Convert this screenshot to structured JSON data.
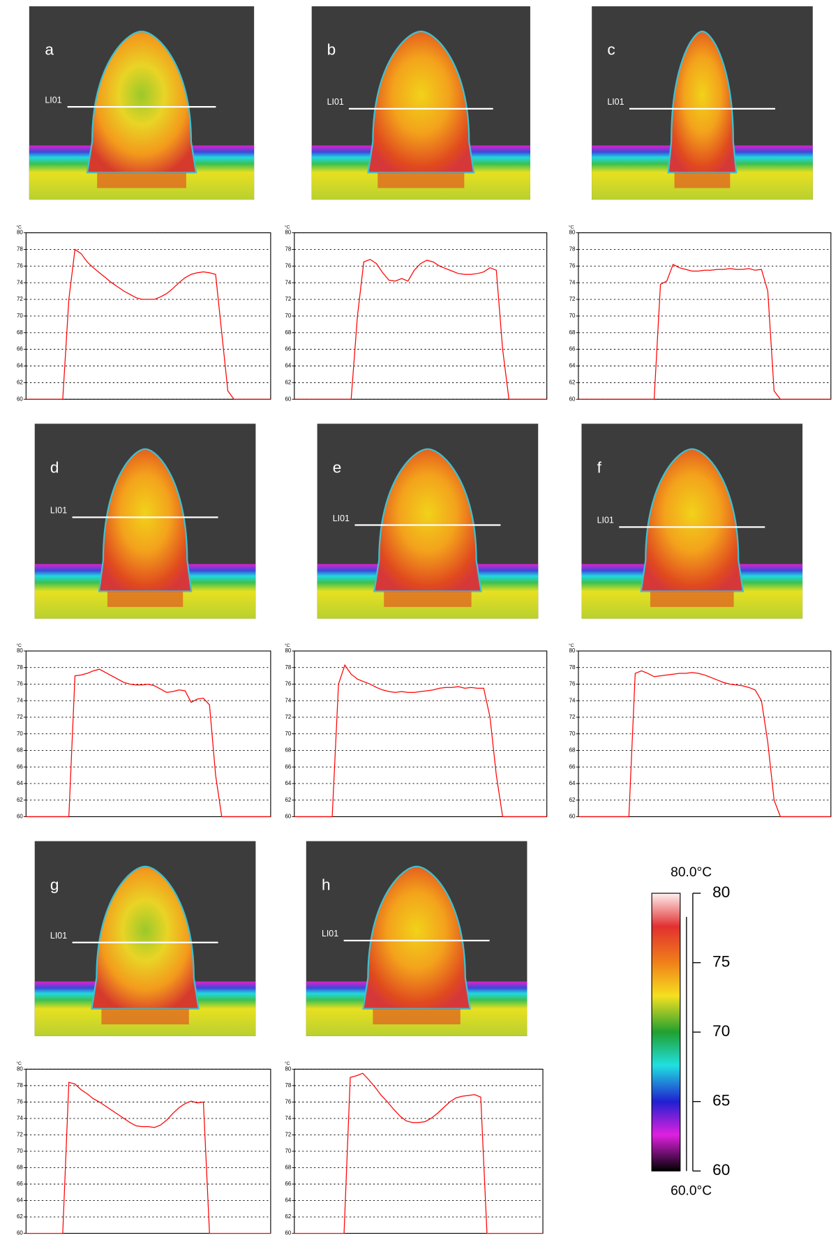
{
  "chart_data": [
    {
      "type": "line",
      "panel_label": "a",
      "line_label": "LI01",
      "y_unit": "°C",
      "color": "#ff0000",
      "ylim": [
        60,
        80
      ],
      "yticks": [
        60,
        62,
        64,
        66,
        68,
        70,
        72,
        74,
        76,
        78,
        80
      ],
      "grid": true,
      "values": [
        60,
        60,
        60,
        60,
        60,
        60,
        60,
        72,
        78,
        77.5,
        76.5,
        75.8,
        75.2,
        74.6,
        74,
        73.5,
        73,
        72.6,
        72.2,
        72,
        72,
        72,
        72.3,
        72.7,
        73.3,
        74,
        74.6,
        75,
        75.2,
        75.3,
        75.2,
        75,
        68,
        61,
        60,
        60,
        60,
        60,
        60,
        60,
        60
      ]
    },
    {
      "type": "line",
      "panel_label": "b",
      "line_label": "LI01",
      "y_unit": "°C",
      "color": "#ff0000",
      "ylim": [
        60,
        80
      ],
      "yticks": [
        60,
        62,
        64,
        66,
        68,
        70,
        72,
        74,
        76,
        78,
        80
      ],
      "grid": true,
      "values": [
        60,
        60,
        60,
        60,
        60,
        60,
        60,
        60,
        60,
        60,
        70,
        76.5,
        76.8,
        76.3,
        75.2,
        74.3,
        74.2,
        74.5,
        74.2,
        75.5,
        76.3,
        76.7,
        76.5,
        76,
        75.7,
        75.4,
        75.1,
        75,
        75,
        75.1,
        75.3,
        75.8,
        75.5,
        66,
        60,
        60,
        60,
        60,
        60,
        60,
        60
      ]
    },
    {
      "type": "line",
      "panel_label": "c",
      "line_label": "LI01",
      "y_unit": "°C",
      "color": "#ff0000",
      "ylim": [
        60,
        80
      ],
      "yticks": [
        60,
        62,
        64,
        66,
        68,
        70,
        72,
        74,
        76,
        78,
        80
      ],
      "grid": true,
      "values": [
        60,
        60,
        60,
        60,
        60,
        60,
        60,
        60,
        60,
        60,
        60,
        60,
        60,
        73.8,
        74.2,
        76.2,
        75.8,
        75.6,
        75.4,
        75.4,
        75.5,
        75.5,
        75.6,
        75.6,
        75.7,
        75.6,
        75.6,
        75.7,
        75.5,
        75.6,
        73,
        61,
        60,
        60,
        60,
        60,
        60,
        60,
        60,
        60,
        60
      ]
    },
    {
      "type": "line",
      "panel_label": "d",
      "line_label": "LI01",
      "y_unit": "°C",
      "color": "#ff0000",
      "ylim": [
        60,
        80
      ],
      "yticks": [
        60,
        62,
        64,
        66,
        68,
        70,
        72,
        74,
        76,
        78,
        80
      ],
      "grid": true,
      "values": [
        60,
        60,
        60,
        60,
        60,
        60,
        60,
        60,
        77,
        77.1,
        77.3,
        77.6,
        77.8,
        77.4,
        77,
        76.6,
        76.2,
        76,
        75.9,
        75.9,
        76,
        75.8,
        75.4,
        75,
        75.1,
        75.3,
        75.2,
        73.8,
        74.2,
        74.3,
        73.5,
        65,
        60,
        60,
        60,
        60,
        60,
        60,
        60,
        60,
        60
      ]
    },
    {
      "type": "line",
      "panel_label": "e",
      "line_label": "LI01",
      "y_unit": "°C",
      "color": "#ff0000",
      "ylim": [
        60,
        80
      ],
      "yticks": [
        60,
        62,
        64,
        66,
        68,
        70,
        72,
        74,
        76,
        78,
        80
      ],
      "grid": true,
      "values": [
        60,
        60,
        60,
        60,
        60,
        60,
        60,
        76,
        78.3,
        77.2,
        76.6,
        76.3,
        76,
        75.6,
        75.3,
        75.1,
        75,
        75.1,
        75,
        75,
        75.1,
        75.2,
        75.3,
        75.5,
        75.6,
        75.6,
        75.7,
        75.5,
        75.6,
        75.5,
        75.5,
        72,
        65,
        60,
        60,
        60,
        60,
        60,
        60,
        60,
        60
      ]
    },
    {
      "type": "line",
      "panel_label": "f",
      "line_label": "LI01",
      "y_unit": "°C",
      "color": "#ff0000",
      "ylim": [
        60,
        80
      ],
      "yticks": [
        60,
        62,
        64,
        66,
        68,
        70,
        72,
        74,
        76,
        78,
        80
      ],
      "grid": true,
      "values": [
        60,
        60,
        60,
        60,
        60,
        60,
        60,
        60,
        60,
        77.3,
        77.6,
        77.3,
        76.9,
        77,
        77.1,
        77.2,
        77.3,
        77.3,
        77.4,
        77.3,
        77.1,
        76.8,
        76.5,
        76.2,
        76,
        75.9,
        75.8,
        75.6,
        75.3,
        74,
        69,
        62,
        60,
        60,
        60,
        60,
        60,
        60,
        60,
        60,
        60
      ]
    },
    {
      "type": "line",
      "panel_label": "g",
      "line_label": "LI01",
      "y_unit": "°C",
      "color": "#ff0000",
      "ylim": [
        60,
        80
      ],
      "yticks": [
        60,
        62,
        64,
        66,
        68,
        70,
        72,
        74,
        76,
        78,
        80
      ],
      "grid": true,
      "values": [
        60,
        60,
        60,
        60,
        60,
        60,
        60,
        78.4,
        78.2,
        77.5,
        77,
        76.4,
        76,
        75.5,
        75,
        74.5,
        74,
        73.5,
        73.1,
        73,
        73,
        72.9,
        73.2,
        73.8,
        74.6,
        75.3,
        75.8,
        76.1,
        75.9,
        76,
        60,
        60,
        60,
        60,
        60,
        60,
        60,
        60,
        60,
        60,
        60
      ]
    },
    {
      "type": "line",
      "panel_label": "h",
      "line_label": "LI01",
      "y_unit": "°C",
      "color": "#ff0000",
      "ylim": [
        60,
        80
      ],
      "yticks": [
        60,
        62,
        64,
        66,
        68,
        70,
        72,
        74,
        76,
        78,
        80
      ],
      "grid": true,
      "values": [
        60,
        60,
        60,
        60,
        60,
        60,
        60,
        60,
        60,
        79,
        79.2,
        79.5,
        78.7,
        77.8,
        76.8,
        76,
        75.1,
        74.3,
        73.7,
        73.5,
        73.5,
        73.6,
        74,
        74.6,
        75.3,
        76,
        76.5,
        76.7,
        76.8,
        76.9,
        76.6,
        60,
        60,
        60,
        60,
        60,
        60,
        60,
        60,
        60,
        60
      ]
    }
  ],
  "colorbar": {
    "max_label": "80.0°C",
    "min_label": "60.0°C",
    "lim": [
      60,
      80
    ],
    "ticks": [
      60,
      65,
      70,
      75,
      80
    ]
  }
}
